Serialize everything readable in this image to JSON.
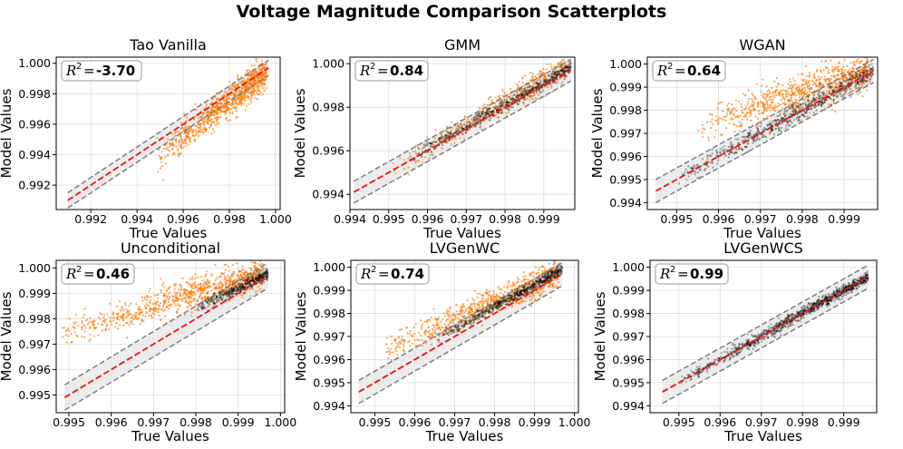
{
  "figure_title": "Voltage Magnitude Comparison Scatterplots",
  "colors": {
    "model_points": "#ff7f0e",
    "true_points": "#000000",
    "reference_line": "#e8140f",
    "band_lines": "#777777",
    "band_fill": "#e6e6e6"
  },
  "chart_data": [
    {
      "type": "scatter",
      "title": "Tao Vanilla",
      "xlabel": "True Values",
      "ylabel": "Model Values",
      "r2_label": "R",
      "r2_sup": "2",
      "r2_value": "-3.70",
      "xlim": [
        0.9905,
        1.0002
      ],
      "ylim": [
        0.9904,
        1.0004
      ],
      "xticks": [
        0.992,
        0.994,
        0.996,
        0.998,
        1.0
      ],
      "yticks": [
        0.992,
        0.994,
        0.996,
        0.998,
        1.0
      ],
      "tick_decimals": 3,
      "diag_range": [
        0.991,
        0.9997
      ],
      "band_offset": 0.0005,
      "grid": true,
      "point_series": [
        {
          "name": "model",
          "color": "#ff7f0e",
          "opacity": 0.7,
          "count": 900,
          "x_range": [
            0.9948,
            0.9996
          ],
          "slope": 1.2,
          "intercept": -0.2001,
          "noise": 0.0005
        }
      ]
    },
    {
      "type": "scatter",
      "title": "GMM",
      "xlabel": "True Values",
      "ylabel": "Model Values",
      "r2_label": "R",
      "r2_sup": "2",
      "r2_value": "0.84",
      "xlim": [
        0.994,
        0.9998
      ],
      "ylim": [
        0.9933,
        1.0003
      ],
      "xticks": [
        0.994,
        0.995,
        0.996,
        0.997,
        0.998,
        0.999
      ],
      "yticks": [
        0.994,
        0.996,
        0.998,
        1.0
      ],
      "tick_decimals": 3,
      "diag_range": [
        0.9941,
        0.9997
      ],
      "band_offset": 0.0005,
      "grid": true,
      "point_series": [
        {
          "name": "model",
          "color": "#ff7f0e",
          "opacity": 0.7,
          "count": 450,
          "x_range": [
            0.995,
            0.9996
          ],
          "slope": 1.05,
          "intercept": -0.0497,
          "noise": 0.0003
        },
        {
          "name": "true",
          "color": "#000000",
          "opacity": 0.35,
          "count": 650,
          "x_range": [
            0.9955,
            0.9997
          ],
          "slope": 1.0,
          "intercept": 0.0001,
          "noise": 0.00015
        }
      ]
    },
    {
      "type": "scatter",
      "title": "WGAN",
      "xlabel": "True Values",
      "ylabel": "Model Values",
      "r2_label": "R",
      "r2_sup": "2",
      "r2_value": "0.64",
      "xlim": [
        0.9943,
        0.9998
      ],
      "ylim": [
        0.9937,
        1.0003
      ],
      "xticks": [
        0.995,
        0.996,
        0.997,
        0.998,
        0.999
      ],
      "yticks": [
        0.994,
        0.995,
        0.996,
        0.997,
        0.998,
        0.999,
        1.0
      ],
      "tick_decimals": 3,
      "diag_range": [
        0.9945,
        0.9997
      ],
      "band_offset": 0.0005,
      "grid": true,
      "point_series": [
        {
          "name": "model",
          "color": "#ff7f0e",
          "opacity": 0.7,
          "count": 800,
          "x_range": [
            0.9955,
            0.9996
          ],
          "slope": 0.6,
          "intercept": 0.4,
          "noise": 0.0004
        },
        {
          "name": "true",
          "color": "#000000",
          "opacity": 0.35,
          "count": 700,
          "x_range": [
            0.995,
            0.9997
          ],
          "slope": 1.0,
          "intercept": 0.0,
          "noise": 0.0002
        }
      ]
    },
    {
      "type": "scatter",
      "title": "Unconditional",
      "xlabel": "True Values",
      "ylabel": "Model Values",
      "r2_label": "R",
      "r2_sup": "2",
      "r2_value": "0.46",
      "xlim": [
        0.9947,
        1.0001
      ],
      "ylim": [
        0.9943,
        1.0003
      ],
      "xticks": [
        0.995,
        0.996,
        0.997,
        0.998,
        0.999,
        1.0
      ],
      "yticks": [
        0.995,
        0.996,
        0.997,
        0.998,
        0.999,
        1.0
      ],
      "tick_decimals": 3,
      "diag_range": [
        0.9949,
        0.9997
      ],
      "band_offset": 0.0005,
      "grid": true,
      "point_series": [
        {
          "name": "model",
          "color": "#ff7f0e",
          "opacity": 0.7,
          "count": 850,
          "x_range": [
            0.9948,
            0.9996
          ],
          "slope": 0.5,
          "intercept": 0.5,
          "noise": 0.0003
        },
        {
          "name": "true",
          "color": "#000000",
          "opacity": 0.35,
          "count": 450,
          "x_range": [
            0.998,
            0.9997
          ],
          "slope": 0.8,
          "intercept": 0.2,
          "noise": 0.00012
        }
      ]
    },
    {
      "type": "scatter",
      "title": "LVGenWC",
      "xlabel": "True Values",
      "ylabel": "Model Values",
      "r2_label": "R",
      "r2_sup": "2",
      "r2_value": "0.74",
      "xlim": [
        0.9944,
        1.0001
      ],
      "ylim": [
        0.9937,
        1.0003
      ],
      "xticks": [
        0.995,
        0.996,
        0.997,
        0.998,
        0.999,
        1.0
      ],
      "yticks": [
        0.994,
        0.995,
        0.996,
        0.997,
        0.998,
        0.999,
        1.0
      ],
      "tick_decimals": 3,
      "diag_range": [
        0.9946,
        0.9997
      ],
      "band_offset": 0.0005,
      "grid": true,
      "point_series": [
        {
          "name": "model",
          "color": "#ff7f0e",
          "opacity": 0.7,
          "count": 750,
          "x_range": [
            0.995,
            0.9996
          ],
          "slope": 0.75,
          "intercept": 0.25,
          "noise": 0.0003
        },
        {
          "name": "true",
          "color": "#000000",
          "opacity": 0.35,
          "count": 650,
          "x_range": [
            0.9965,
            0.9997
          ],
          "slope": 0.95,
          "intercept": 0.0502,
          "noise": 0.00012
        }
      ]
    },
    {
      "type": "scatter",
      "title": "LVGenWCS",
      "xlabel": "True Values",
      "ylabel": "Model Values",
      "r2_label": "R",
      "r2_sup": "2",
      "r2_value": "0.99",
      "xlim": [
        0.9943,
        0.9998
      ],
      "ylim": [
        0.9937,
        1.0003
      ],
      "xticks": [
        0.995,
        0.996,
        0.997,
        0.998,
        0.999
      ],
      "yticks": [
        0.994,
        0.995,
        0.996,
        0.997,
        0.998,
        0.999,
        1.0
      ],
      "tick_decimals": 3,
      "diag_range": [
        0.9946,
        0.9996
      ],
      "band_offset": 0.0005,
      "grid": true,
      "point_series": [
        {
          "name": "true",
          "color": "#000000",
          "opacity": 0.35,
          "count": 1100,
          "x_range": [
            0.995,
            0.9996
          ],
          "slope": 1.0,
          "intercept": 0.0,
          "noise": 0.00012
        }
      ]
    }
  ]
}
